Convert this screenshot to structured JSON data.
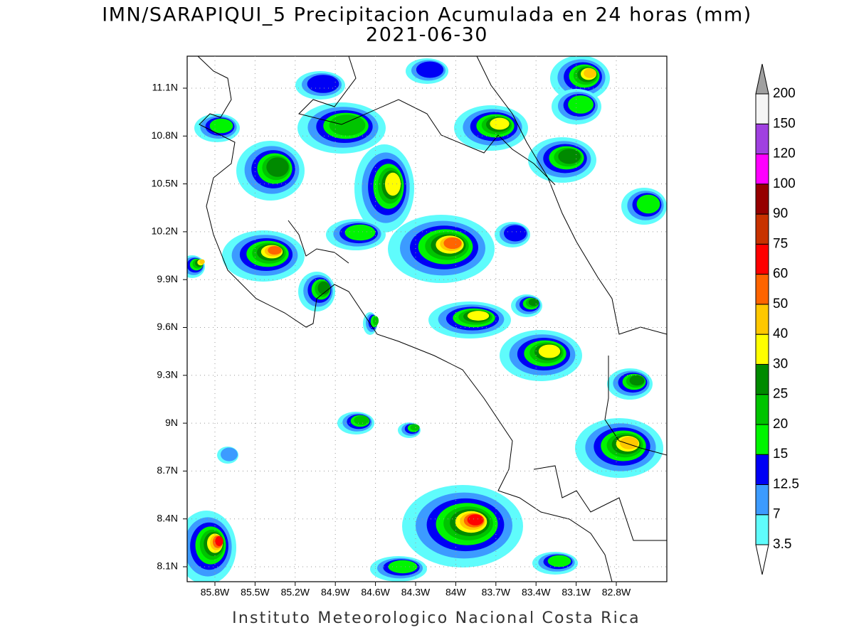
{
  "title": "IMN/SARAPIQUI_5 Precipitacion Acumulada en 24 horas (mm)",
  "subtitle": "2021-06-30",
  "map": {
    "lat_labels": [
      "11.1N",
      "10.8N",
      "10.5N",
      "10.2N",
      "9.9N",
      "9.6N",
      "9.3N",
      "9N",
      "8.7N",
      "8.4N",
      "8.1N"
    ],
    "lon_labels": [
      "85.8W",
      "85.5W",
      "85.2W",
      "84.9W",
      "84.6W",
      "84.3W",
      "84W",
      "83.7W",
      "83.4W",
      "83.1W",
      "82.8W"
    ]
  },
  "colorbar": {
    "levels": [
      3.5,
      7,
      12.5,
      15,
      20,
      25,
      30,
      40,
      50,
      60,
      75,
      90,
      100,
      120,
      150,
      200
    ],
    "colors": [
      "#5ffcfc",
      "#3c9bff",
      "#0000f5",
      "#00f500",
      "#00c400",
      "#008a00",
      "#ffff00",
      "#ffc800",
      "#ff6400",
      "#ff0000",
      "#c83200",
      "#960000",
      "#ff00ff",
      "#a040e0",
      "#f5f5f5"
    ],
    "under_color": "#ffffff",
    "over_color": "#a0a0a0"
  },
  "footer": "Instituto Meteorologico Nacional Costa Rica"
}
